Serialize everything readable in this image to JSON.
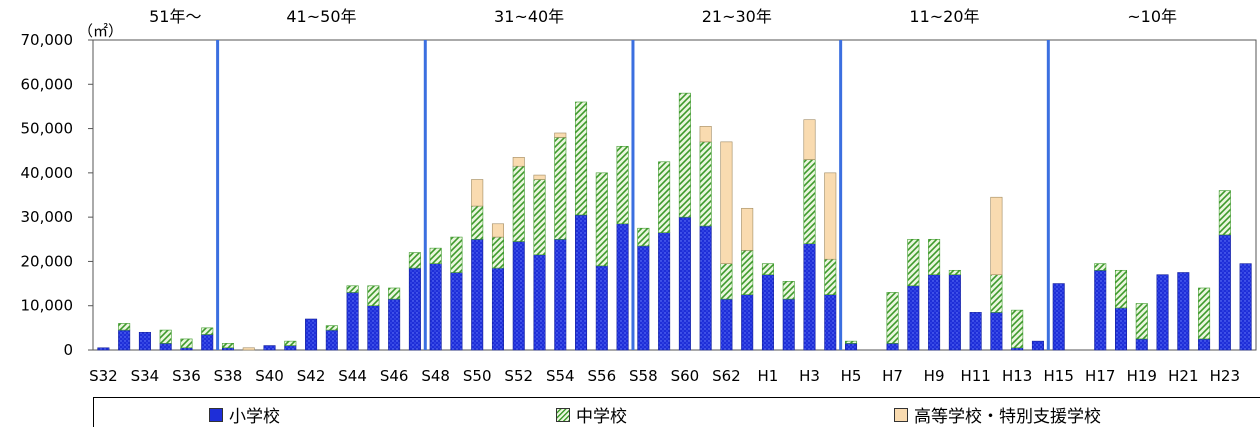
{
  "chart_data": {
    "type": "bar",
    "stacked": true,
    "unit_label": "（㎡）",
    "ylim": [
      0,
      70000
    ],
    "ytick_labels": [
      "0",
      "10,000",
      "20,000",
      "30,000",
      "40,000",
      "50,000",
      "60,000",
      "70,000"
    ],
    "yticks": [
      0,
      10000,
      20000,
      30000,
      40000,
      50000,
      60000,
      70000
    ],
    "categories": [
      "S32",
      "S33",
      "S34",
      "S35",
      "S36",
      "S37",
      "S38",
      "S39",
      "S40",
      "S41",
      "S42",
      "S43",
      "S44",
      "S45",
      "S46",
      "S47",
      "S48",
      "S49",
      "S50",
      "S51",
      "S52",
      "S53",
      "S54",
      "S55",
      "S56",
      "S57",
      "S58",
      "S59",
      "S60",
      "S61",
      "S62",
      "S63",
      "H1",
      "H2",
      "H3",
      "H4",
      "H5",
      "H6",
      "H7",
      "H8",
      "H9",
      "H10",
      "H11",
      "H12",
      "H13",
      "H14",
      "H15",
      "H16",
      "H17",
      "H18",
      "H19",
      "H20",
      "H21",
      "H22",
      "H23",
      "H24"
    ],
    "xtick_labels": [
      "S32",
      "S34",
      "S36",
      "S38",
      "S40",
      "S42",
      "S44",
      "S46",
      "S48",
      "S50",
      "S52",
      "S54",
      "S56",
      "S58",
      "S60",
      "S62",
      "H1",
      "H3",
      "H5",
      "H7",
      "H9",
      "H11",
      "H13",
      "H15",
      "H17",
      "H19",
      "H21",
      "H23"
    ],
    "series": [
      {
        "name": "小学校",
        "color": "#1d2fd6",
        "values": [
          500,
          4500,
          4000,
          1500,
          500,
          3500,
          500,
          0,
          1000,
          1000,
          7000,
          4500,
          13000,
          10000,
          11500,
          18500,
          19500,
          17500,
          25000,
          18500,
          24500,
          21500,
          25000,
          30500,
          19000,
          28500,
          23500,
          26500,
          30000,
          28000,
          11500,
          12500,
          17000,
          11500,
          24000,
          12500,
          1500,
          0,
          1500,
          14500,
          17000,
          17000,
          8500,
          8500,
          500,
          2000,
          15000,
          0,
          18000,
          9500,
          2500,
          17000,
          17500,
          2500,
          26000,
          19500
        ]
      },
      {
        "name": "中学校",
        "color": "#7fc45a",
        "values": [
          0,
          1500,
          0,
          3000,
          2000,
          1500,
          1000,
          0,
          0,
          1000,
          0,
          1000,
          1500,
          4500,
          2500,
          3500,
          3500,
          8000,
          7500,
          7000,
          17000,
          17000,
          23000,
          25500,
          21000,
          17500,
          4000,
          16000,
          28000,
          19000,
          8000,
          10000,
          2500,
          4000,
          19000,
          8000,
          500,
          0,
          11500,
          10500,
          8000,
          1000,
          0,
          8500,
          8500,
          0,
          0,
          0,
          1500,
          8500,
          8000,
          0,
          0,
          11500,
          10000,
          0
        ]
      },
      {
        "name": "高等学校・特別支援学校",
        "color": "#f9dbb0",
        "values": [
          0,
          0,
          0,
          0,
          0,
          0,
          0,
          500,
          0,
          0,
          0,
          0,
          0,
          0,
          0,
          0,
          0,
          0,
          6000,
          3000,
          2000,
          1000,
          1000,
          0,
          0,
          0,
          0,
          0,
          0,
          3500,
          27500,
          9500,
          0,
          0,
          9000,
          19500,
          0,
          0,
          0,
          0,
          0,
          0,
          0,
          17500,
          0,
          0,
          0,
          0,
          0,
          0,
          0,
          0,
          0,
          0,
          0,
          0
        ]
      }
    ],
    "periods": [
      {
        "label": "51年～",
        "from": "S32",
        "to": "S37"
      },
      {
        "label": "41~50年",
        "from": "S38",
        "to": "S47"
      },
      {
        "label": "31~40年",
        "from": "S48",
        "to": "S57"
      },
      {
        "label": "21~30年",
        "from": "S58",
        "to": "H4"
      },
      {
        "label": "11~20年",
        "from": "H5",
        "to": "H14"
      },
      {
        "label": "~10年",
        "from": "H15",
        "to": "H24"
      }
    ],
    "divider_color": "#3b6fe0",
    "grid": false,
    "legend_position": "bottom"
  }
}
